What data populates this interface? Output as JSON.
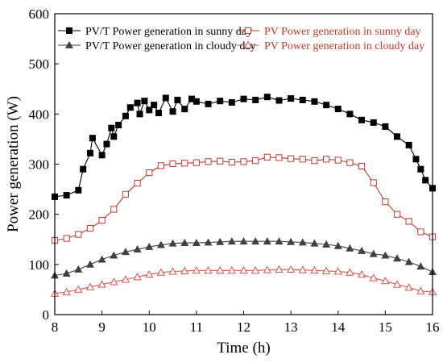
{
  "chart_data": {
    "type": "line",
    "xlabel": "Time (h)",
    "ylabel": "Power generation (W)",
    "xlim": [
      8,
      16
    ],
    "ylim": [
      0,
      600
    ],
    "xticks": [
      8,
      9,
      10,
      11,
      12,
      13,
      14,
      15,
      16
    ],
    "yticks": [
      0,
      100,
      200,
      300,
      400,
      500,
      600
    ],
    "grid": false,
    "legend": "top",
    "series": [
      {
        "name": "PV/T Power generation in sunny day",
        "color": "#000000",
        "marker": "square-filled",
        "x": [
          8.0,
          8.25,
          8.5,
          8.6,
          8.75,
          8.8,
          9.0,
          9.1,
          9.2,
          9.25,
          9.35,
          9.5,
          9.6,
          9.75,
          9.8,
          9.9,
          10.0,
          10.1,
          10.2,
          10.35,
          10.5,
          10.6,
          10.75,
          10.9,
          11.0,
          11.25,
          11.5,
          11.75,
          12.0,
          12.25,
          12.5,
          12.75,
          13.0,
          13.25,
          13.5,
          13.75,
          14.0,
          14.25,
          14.5,
          14.75,
          15.0,
          15.25,
          15.5,
          15.65,
          15.75,
          15.85,
          16.0
        ],
        "y": [
          235,
          238,
          248,
          290,
          322,
          352,
          318,
          340,
          372,
          355,
          378,
          396,
          413,
          422,
          400,
          426,
          408,
          418,
          402,
          432,
          405,
          428,
          410,
          430,
          425,
          420,
          426,
          423,
          430,
          428,
          434,
          427,
          431,
          428,
          425,
          418,
          410,
          400,
          388,
          383,
          375,
          355,
          338,
          310,
          290,
          268,
          252
        ]
      },
      {
        "name": "PV Power generation in sunny day",
        "color": "#c0392b",
        "marker": "square-open",
        "x": [
          8.0,
          8.25,
          8.5,
          8.75,
          9.0,
          9.25,
          9.5,
          9.75,
          10.0,
          10.25,
          10.5,
          10.75,
          11.0,
          11.25,
          11.5,
          11.75,
          12.0,
          12.25,
          12.5,
          12.75,
          13.0,
          13.25,
          13.5,
          13.75,
          14.0,
          14.25,
          14.5,
          14.75,
          15.0,
          15.25,
          15.5,
          15.75,
          16.0
        ],
        "y": [
          148,
          152,
          160,
          172,
          188,
          210,
          240,
          262,
          283,
          297,
          301,
          302,
          303,
          305,
          306,
          304,
          305,
          307,
          314,
          313,
          311,
          310,
          307,
          310,
          308,
          303,
          296,
          263,
          225,
          200,
          186,
          165,
          155
        ]
      },
      {
        "name": "PV/T Power generation in cloudy day",
        "color": "#404040",
        "marker": "triangle-filled",
        "x": [
          8.0,
          8.25,
          8.5,
          8.75,
          9.0,
          9.25,
          9.5,
          9.75,
          10.0,
          10.25,
          10.5,
          10.75,
          11.0,
          11.25,
          11.5,
          11.75,
          12.0,
          12.25,
          12.5,
          12.75,
          13.0,
          13.25,
          13.5,
          13.75,
          14.0,
          14.25,
          14.5,
          14.75,
          15.0,
          15.25,
          15.5,
          15.75,
          16.0
        ],
        "y": [
          78,
          82,
          90,
          100,
          110,
          118,
          125,
          130,
          135,
          139,
          142,
          143,
          143,
          144,
          145,
          146,
          146,
          146,
          146,
          146,
          145,
          144,
          142,
          140,
          137,
          132,
          127,
          121,
          118,
          112,
          105,
          96,
          85
        ]
      },
      {
        "name": "PV Power generation in cloudy day",
        "color": "#d9534f",
        "marker": "triangle-open",
        "x": [
          8.0,
          8.25,
          8.5,
          8.75,
          9.0,
          9.25,
          9.5,
          9.75,
          10.0,
          10.25,
          10.5,
          10.75,
          11.0,
          11.25,
          11.5,
          11.75,
          12.0,
          12.25,
          12.5,
          12.75,
          13.0,
          13.25,
          13.5,
          13.75,
          14.0,
          14.25,
          14.5,
          14.75,
          15.0,
          15.25,
          15.5,
          15.75,
          16.0
        ],
        "y": [
          42,
          45,
          50,
          55,
          60,
          65,
          70,
          75,
          80,
          84,
          86,
          87,
          88,
          88,
          88,
          88,
          88,
          88,
          89,
          90,
          90,
          89,
          88,
          87,
          86,
          84,
          80,
          73,
          67,
          60,
          54,
          47,
          45
        ]
      }
    ]
  }
}
